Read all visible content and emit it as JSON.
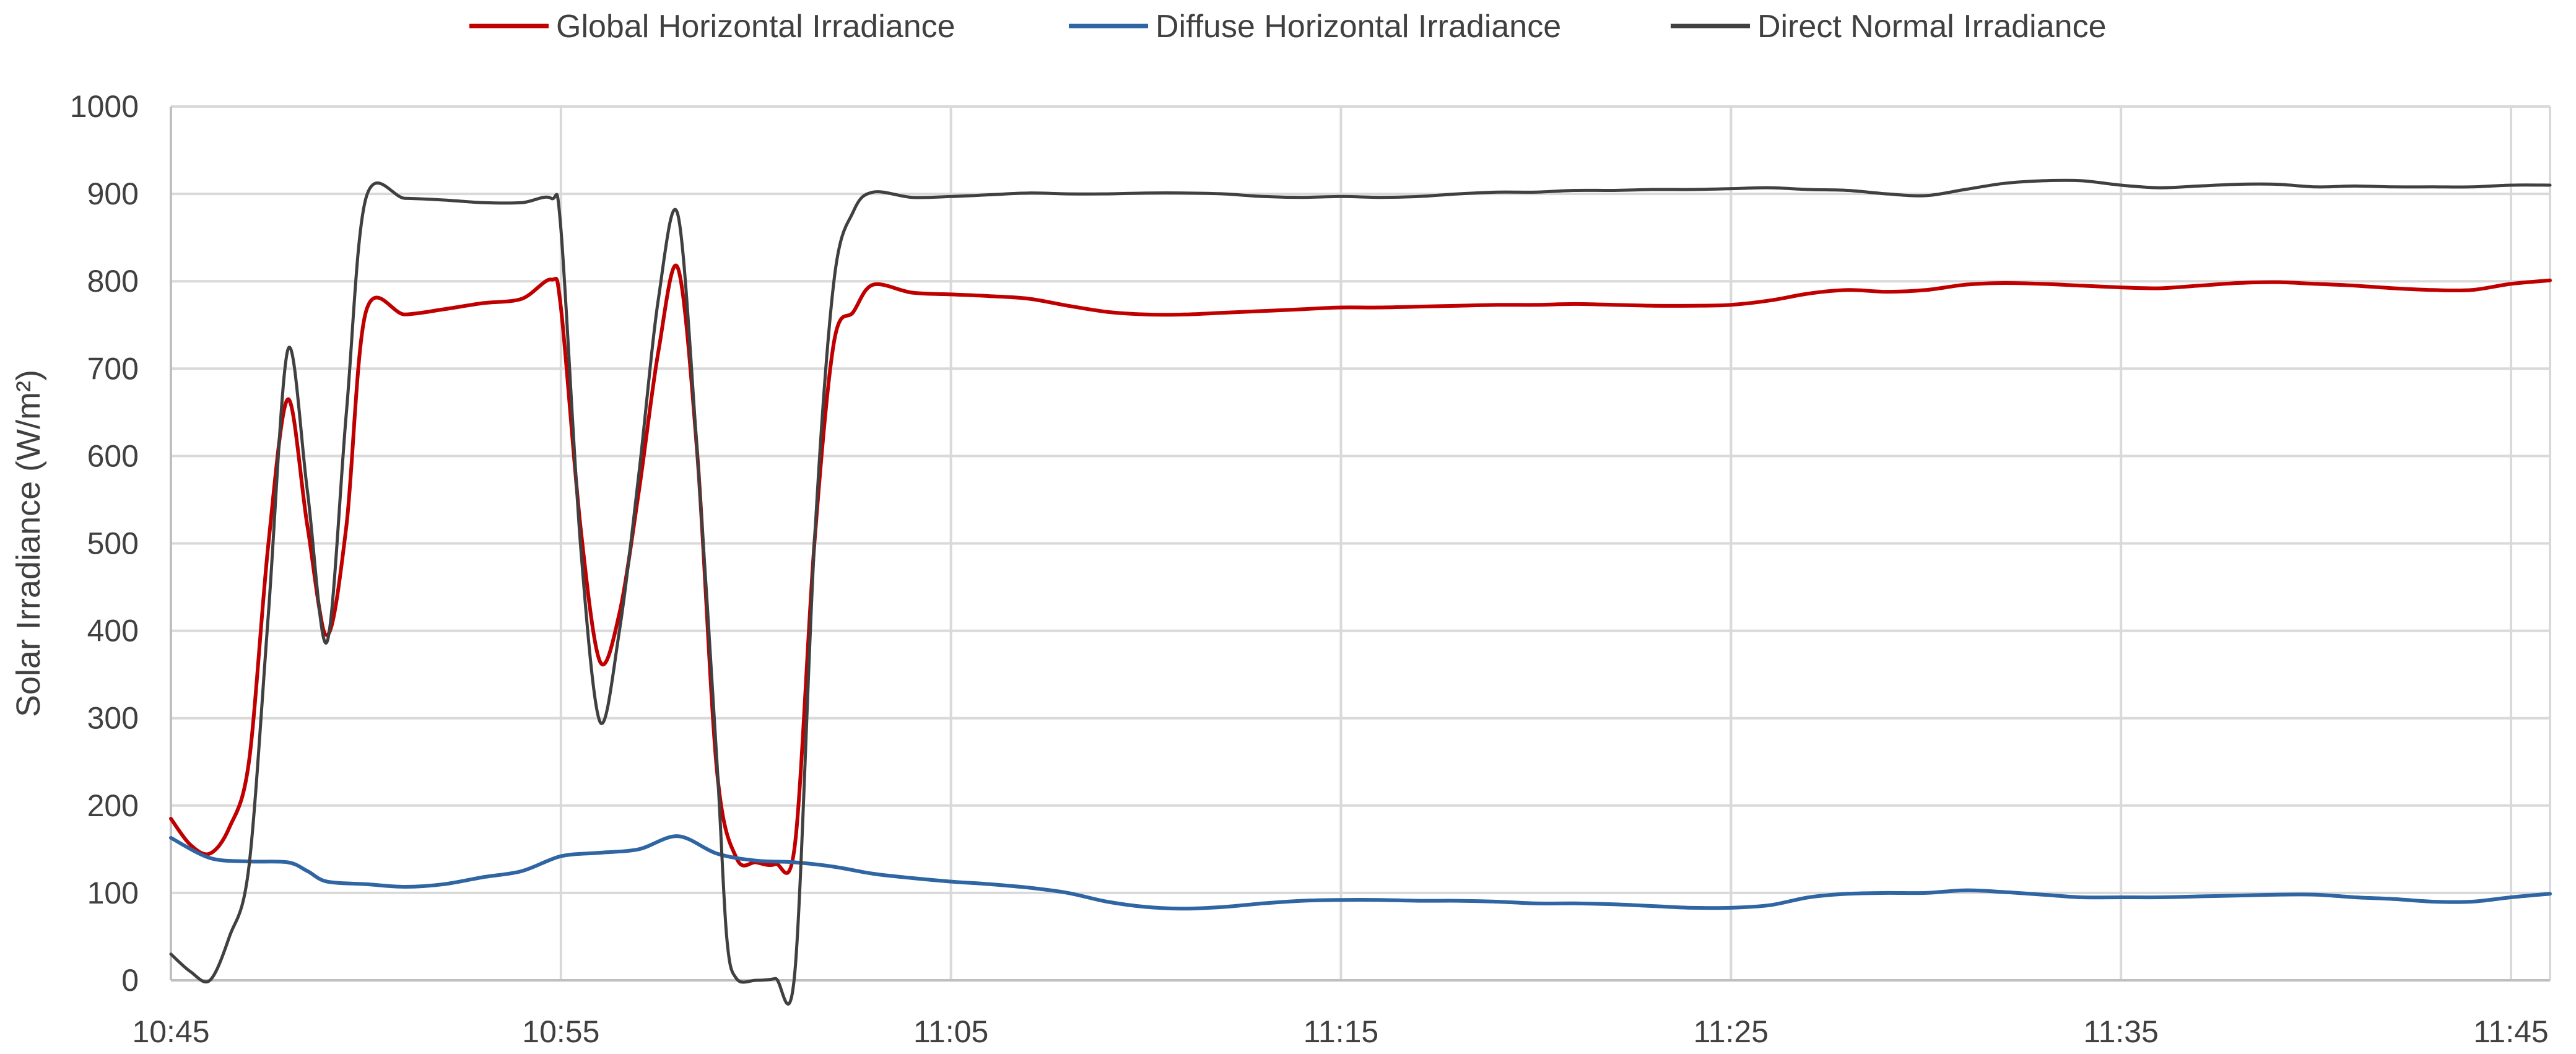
{
  "chart_data": {
    "type": "line",
    "title": "",
    "xlabel": "",
    "ylabel": "Solar Irradiance  (W/m²)",
    "ylim": [
      0,
      1000
    ],
    "yticks": [
      "0",
      "100",
      "200",
      "300",
      "400",
      "500",
      "600",
      "700",
      "800",
      "900",
      "1000"
    ],
    "xlim": [
      "10:45",
      "11:46"
    ],
    "xticks": [
      "10:45",
      "10:55",
      "11:05",
      "11:15",
      "11:25",
      "11:35",
      "11:45"
    ],
    "grid": true,
    "legend_position": "top",
    "series": [
      {
        "name": "Global Horizontal  Irradiance",
        "color": "#C00000",
        "points": [
          [
            "10:45",
            185
          ],
          [
            "10:45:30",
            155
          ],
          [
            "10:46",
            145
          ],
          [
            "10:46:30",
            175
          ],
          [
            "10:47",
            250
          ],
          [
            "10:47:30",
            500
          ],
          [
            "10:48",
            665
          ],
          [
            "10:48:30",
            520
          ],
          [
            "10:49",
            395
          ],
          [
            "10:49:30",
            520
          ],
          [
            "10:50",
            765
          ],
          [
            "10:51",
            762
          ],
          [
            "10:52",
            768
          ],
          [
            "10:53",
            775
          ],
          [
            "10:54",
            780
          ],
          [
            "10:54:45",
            802
          ],
          [
            "10:55",
            770
          ],
          [
            "10:55:30",
            520
          ],
          [
            "10:56",
            365
          ],
          [
            "10:56:30",
            420
          ],
          [
            "10:57",
            560
          ],
          [
            "10:57:30",
            720
          ],
          [
            "10:58",
            815
          ],
          [
            "10:58:30",
            600
          ],
          [
            "10:59",
            240
          ],
          [
            "10:59:30",
            140
          ],
          [
            "11:00",
            135
          ],
          [
            "11:00:30",
            133
          ],
          [
            "11:01",
            155
          ],
          [
            "11:01:30",
            500
          ],
          [
            "11:02",
            730
          ],
          [
            "11:02:30",
            765
          ],
          [
            "11:03",
            796
          ],
          [
            "11:04",
            787
          ],
          [
            "11:05",
            785
          ],
          [
            "11:06",
            783
          ],
          [
            "11:07",
            780
          ],
          [
            "11:08",
            772
          ],
          [
            "11:09",
            765
          ],
          [
            "11:10",
            762
          ],
          [
            "11:11",
            762
          ],
          [
            "11:12",
            764
          ],
          [
            "11:13",
            766
          ],
          [
            "11:14",
            768
          ],
          [
            "11:15",
            770
          ],
          [
            "11:16",
            770
          ],
          [
            "11:17",
            771
          ],
          [
            "11:18",
            772
          ],
          [
            "11:19",
            773
          ],
          [
            "11:20",
            773
          ],
          [
            "11:21",
            774
          ],
          [
            "11:22",
            773
          ],
          [
            "11:23",
            772
          ],
          [
            "11:24",
            772
          ],
          [
            "11:25",
            773
          ],
          [
            "11:26",
            778
          ],
          [
            "11:27",
            786
          ],
          [
            "11:28",
            790
          ],
          [
            "11:29",
            788
          ],
          [
            "11:30",
            790
          ],
          [
            "11:31",
            796
          ],
          [
            "11:32",
            798
          ],
          [
            "11:33",
            797
          ],
          [
            "11:34",
            795
          ],
          [
            "11:35",
            793
          ],
          [
            "11:36",
            792
          ],
          [
            "11:37",
            795
          ],
          [
            "11:38",
            798
          ],
          [
            "11:39",
            799
          ],
          [
            "11:40",
            797
          ],
          [
            "11:41",
            795
          ],
          [
            "11:42",
            792
          ],
          [
            "11:43",
            790
          ],
          [
            "11:44",
            790
          ],
          [
            "11:45",
            797
          ],
          [
            "11:46",
            801
          ]
        ]
      },
      {
        "name": "Diffuse Horizontal Irradiance",
        "color": "#2E65A2",
        "points": [
          [
            "10:45",
            163
          ],
          [
            "10:46",
            140
          ],
          [
            "10:47",
            136
          ],
          [
            "10:48",
            135
          ],
          [
            "10:48:30",
            125
          ],
          [
            "10:49",
            113
          ],
          [
            "10:50",
            110
          ],
          [
            "10:51",
            107
          ],
          [
            "10:52",
            110
          ],
          [
            "10:53",
            118
          ],
          [
            "10:54",
            125
          ],
          [
            "10:55",
            142
          ],
          [
            "10:56",
            146
          ],
          [
            "10:57",
            150
          ],
          [
            "10:58",
            165
          ],
          [
            "10:59",
            145
          ],
          [
            "11:00",
            137
          ],
          [
            "11:01",
            135
          ],
          [
            "11:02",
            130
          ],
          [
            "11:03",
            122
          ],
          [
            "11:04",
            117
          ],
          [
            "11:05",
            113
          ],
          [
            "11:06",
            110
          ],
          [
            "11:07",
            106
          ],
          [
            "11:08",
            100
          ],
          [
            "11:09",
            90
          ],
          [
            "11:10",
            84
          ],
          [
            "11:11",
            82
          ],
          [
            "11:12",
            84
          ],
          [
            "11:13",
            88
          ],
          [
            "11:14",
            91
          ],
          [
            "11:15",
            92
          ],
          [
            "11:16",
            92
          ],
          [
            "11:17",
            91
          ],
          [
            "11:18",
            91
          ],
          [
            "11:19",
            90
          ],
          [
            "11:20",
            88
          ],
          [
            "11:21",
            88
          ],
          [
            "11:22",
            87
          ],
          [
            "11:23",
            85
          ],
          [
            "11:24",
            83
          ],
          [
            "11:25",
            83
          ],
          [
            "11:26",
            86
          ],
          [
            "11:27",
            95
          ],
          [
            "11:28",
            99
          ],
          [
            "11:29",
            100
          ],
          [
            "11:30",
            100
          ],
          [
            "11:31",
            103
          ],
          [
            "11:32",
            101
          ],
          [
            "11:33",
            98
          ],
          [
            "11:34",
            95
          ],
          [
            "11:35",
            95
          ],
          [
            "11:36",
            95
          ],
          [
            "11:37",
            96
          ],
          [
            "11:38",
            97
          ],
          [
            "11:39",
            98
          ],
          [
            "11:40",
            98
          ],
          [
            "11:41",
            95
          ],
          [
            "11:42",
            93
          ],
          [
            "11:43",
            90
          ],
          [
            "11:44",
            90
          ],
          [
            "11:45",
            95
          ],
          [
            "11:46",
            99
          ]
        ]
      },
      {
        "name": "Direct Normal Irradiance",
        "color": "#404040",
        "points": [
          [
            "10:45",
            30
          ],
          [
            "10:45:30",
            10
          ],
          [
            "10:46",
            0
          ],
          [
            "10:46:30",
            50
          ],
          [
            "10:47",
            130
          ],
          [
            "10:47:30",
            420
          ],
          [
            "10:48",
            722
          ],
          [
            "10:48:30",
            560
          ],
          [
            "10:49",
            387
          ],
          [
            "10:49:30",
            650
          ],
          [
            "10:50",
            895
          ],
          [
            "10:51",
            895
          ],
          [
            "10:52",
            893
          ],
          [
            "10:53",
            890
          ],
          [
            "10:54",
            890
          ],
          [
            "10:54:45",
            895
          ],
          [
            "10:55",
            860
          ],
          [
            "10:55:30",
            500
          ],
          [
            "10:56",
            296
          ],
          [
            "10:56:30",
            400
          ],
          [
            "10:57",
            580
          ],
          [
            "10:57:30",
            780
          ],
          [
            "10:58",
            876
          ],
          [
            "10:58:30",
            600
          ],
          [
            "10:59",
            250
          ],
          [
            "10:59:15",
            50
          ],
          [
            "10:59:30",
            2
          ],
          [
            "11:00",
            0
          ],
          [
            "11:00:30",
            2
          ],
          [
            "11:01",
            10
          ],
          [
            "11:01:30",
            500
          ],
          [
            "11:02",
            800
          ],
          [
            "11:02:30",
            880
          ],
          [
            "11:03",
            902
          ],
          [
            "11:04",
            896
          ],
          [
            "11:05",
            897
          ],
          [
            "11:06",
            899
          ],
          [
            "11:07",
            901
          ],
          [
            "11:08",
            900
          ],
          [
            "11:09",
            900
          ],
          [
            "11:10",
            901
          ],
          [
            "11:11",
            901
          ],
          [
            "11:12",
            900
          ],
          [
            "11:13",
            897
          ],
          [
            "11:14",
            896
          ],
          [
            "11:15",
            897
          ],
          [
            "11:16",
            896
          ],
          [
            "11:17",
            897
          ],
          [
            "11:18",
            900
          ],
          [
            "11:19",
            902
          ],
          [
            "11:20",
            902
          ],
          [
            "11:21",
            904
          ],
          [
            "11:22",
            904
          ],
          [
            "11:23",
            905
          ],
          [
            "11:24",
            905
          ],
          [
            "11:25",
            906
          ],
          [
            "11:26",
            907
          ],
          [
            "11:27",
            905
          ],
          [
            "11:28",
            904
          ],
          [
            "11:29",
            900
          ],
          [
            "11:30",
            898
          ],
          [
            "11:31",
            905
          ],
          [
            "11:32",
            912
          ],
          [
            "11:33",
            915
          ],
          [
            "11:34",
            915
          ],
          [
            "11:35",
            910
          ],
          [
            "11:36",
            907
          ],
          [
            "11:37",
            909
          ],
          [
            "11:38",
            911
          ],
          [
            "11:39",
            911
          ],
          [
            "11:40",
            908
          ],
          [
            "11:41",
            909
          ],
          [
            "11:42",
            908
          ],
          [
            "11:43",
            908
          ],
          [
            "11:44",
            908
          ],
          [
            "11:45",
            910
          ],
          [
            "11:46",
            910
          ]
        ]
      }
    ]
  }
}
